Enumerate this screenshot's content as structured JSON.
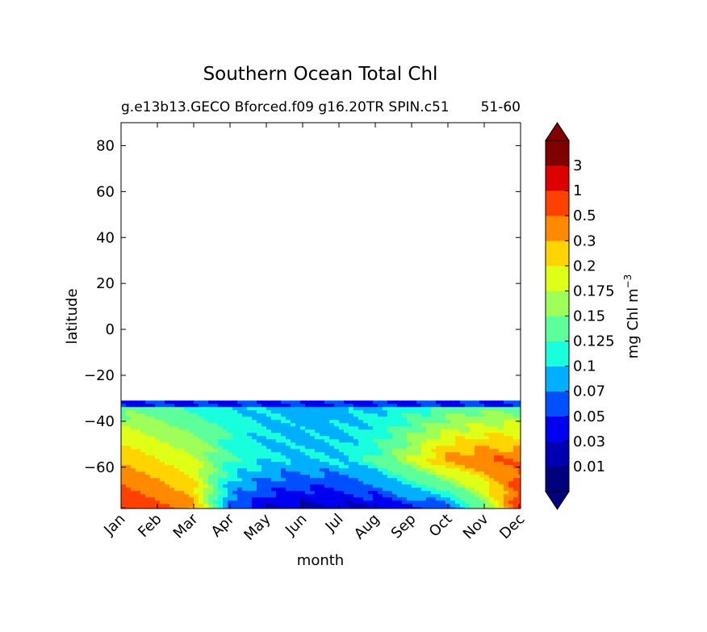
{
  "chart_data": {
    "type": "heatmap",
    "title": "Southern Ocean Total Chl",
    "subtitle_left": "g.e13b13.GECO Bforced.f09 g16.20TR SPIN.c51",
    "subtitle_right": "51-60",
    "xlabel": "month",
    "ylabel": "latitude",
    "x_ticks": [
      "Jan",
      "Feb",
      "Mar",
      "Apr",
      "May",
      "Jun",
      "Jul",
      "Aug",
      "Sep",
      "Oct",
      "Nov",
      "Dec"
    ],
    "ylim": [
      -78,
      90
    ],
    "y_ticks": [
      80,
      60,
      40,
      20,
      0,
      -20,
      -40,
      -60
    ],
    "y_tick_labels": [
      "80",
      "60",
      "40",
      "20",
      "0",
      "−20",
      "−40",
      "−60"
    ],
    "data_lat_range": [
      -78,
      -31
    ],
    "colorbar": {
      "label_text": "mg Chl m",
      "label_exponent": "−3",
      "levels": [
        "0.01",
        "0.03",
        "0.05",
        "0.07",
        "0.1",
        "0.125",
        "0.15",
        "0.175",
        "0.2",
        "0.3",
        "0.5",
        "1",
        "3"
      ],
      "colors": [
        "#00007f",
        "#0000b2",
        "#0000f1",
        "#0050ff",
        "#00b0ff",
        "#19ffde",
        "#5cff9a",
        "#9eff58",
        "#e0ff16",
        "#ffd400",
        "#ff8a00",
        "#ff4100",
        "#dd0000",
        "#800000"
      ],
      "extend": "both"
    },
    "grid": false
  }
}
